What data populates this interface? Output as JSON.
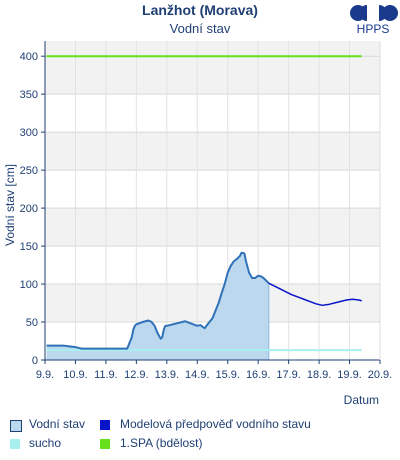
{
  "header": {
    "title": "Lanžhot (Morava)",
    "subtitle": "Vodní stav",
    "logo_text": "HPPS"
  },
  "legend": [
    {
      "label": "Vodní stav",
      "color": "#bcd8ee",
      "border": "#1f3f73"
    },
    {
      "label": "Modelová předpověď vodního stavu",
      "color": "#0a14c8",
      "border": "#0a14c8"
    },
    {
      "label": "sucho",
      "color": "#a8f0f0",
      "border": "#a8f0f0"
    },
    {
      "label": "1.SPA (bdělost)",
      "color": "#66e01a",
      "border": "#66e01a"
    }
  ],
  "chart_data": {
    "type": "area",
    "ylabel": "Vodní stav [cm]",
    "xlabel": "Datum",
    "ylim": [
      0,
      420
    ],
    "xlim": [
      9,
      20
    ],
    "yticks": [
      0,
      50,
      100,
      150,
      200,
      250,
      300,
      350,
      400
    ],
    "xticks": [
      {
        "value": 9,
        "label": "9.9."
      },
      {
        "value": 10,
        "label": "10.9."
      },
      {
        "value": 11,
        "label": "11.9."
      },
      {
        "value": 12,
        "label": "12.9."
      },
      {
        "value": 13,
        "label": "13.9."
      },
      {
        "value": 14,
        "label": "14.9."
      },
      {
        "value": 15,
        "label": "15.9."
      },
      {
        "value": 16,
        "label": "16.9."
      },
      {
        "value": 17,
        "label": "17.9."
      },
      {
        "value": 18,
        "label": "18.9."
      },
      {
        "value": 19,
        "label": "19.9."
      },
      {
        "value": 20,
        "label": "20.9."
      }
    ],
    "grid": true,
    "colors": {
      "observed_fill": "#bcd8ee",
      "observed_line": "#2f72b8",
      "forecast_line": "#0a14c8",
      "drought_line": "#a8f0f0",
      "spa_line": "#66e01a",
      "band": "#f2f2f2",
      "axis": "#1f3f73"
    },
    "series": [
      {
        "name": "Vodní stav",
        "x": [
          9.05,
          9.3,
          9.6,
          9.8,
          10.0,
          10.2,
          10.5,
          10.8,
          11.0,
          11.3,
          11.5,
          11.7,
          11.75,
          11.85,
          11.9,
          11.95,
          12.0,
          12.2,
          12.4,
          12.5,
          12.6,
          12.7,
          12.8,
          12.85,
          12.9,
          12.95,
          13.0,
          13.2,
          13.4,
          13.6,
          13.8,
          14.0,
          14.1,
          14.2,
          14.25,
          14.3,
          14.4,
          14.5,
          14.6,
          14.7,
          14.8,
          14.9,
          15.0,
          15.1,
          15.2,
          15.3,
          15.4,
          15.45,
          15.5,
          15.55,
          15.6,
          15.7,
          15.8,
          15.9,
          16.0,
          16.1,
          16.2,
          16.3,
          16.35
        ],
        "y": [
          19,
          19,
          19,
          18,
          17,
          15,
          15,
          15,
          15,
          15,
          15,
          15,
          20,
          30,
          40,
          45,
          47,
          50,
          52,
          50,
          45,
          35,
          28,
          30,
          40,
          45,
          45,
          47,
          49,
          51,
          48,
          45,
          46,
          43,
          42,
          45,
          50,
          55,
          65,
          75,
          88,
          100,
          115,
          124,
          130,
          133,
          137,
          141,
          141,
          140,
          130,
          115,
          108,
          108,
          111,
          110,
          107,
          103,
          101
        ]
      },
      {
        "name": "Modelová předpověď vodního stavu",
        "x": [
          16.35,
          16.5,
          16.7,
          16.9,
          17.1,
          17.3,
          17.5,
          17.7,
          17.9,
          18.1,
          18.3,
          18.5,
          18.7,
          18.9,
          19.1,
          19.3,
          19.4
        ],
        "y": [
          101,
          98,
          94,
          90,
          86,
          83,
          80,
          77,
          74,
          72,
          73,
          75,
          77,
          79,
          80,
          79,
          78
        ]
      },
      {
        "name": "sucho",
        "x": [
          9.05,
          19.4
        ],
        "y": [
          13,
          13
        ]
      },
      {
        "name": "1.SPA (bdělost)",
        "x": [
          9.05,
          19.4
        ],
        "y": [
          400,
          400
        ]
      }
    ]
  }
}
